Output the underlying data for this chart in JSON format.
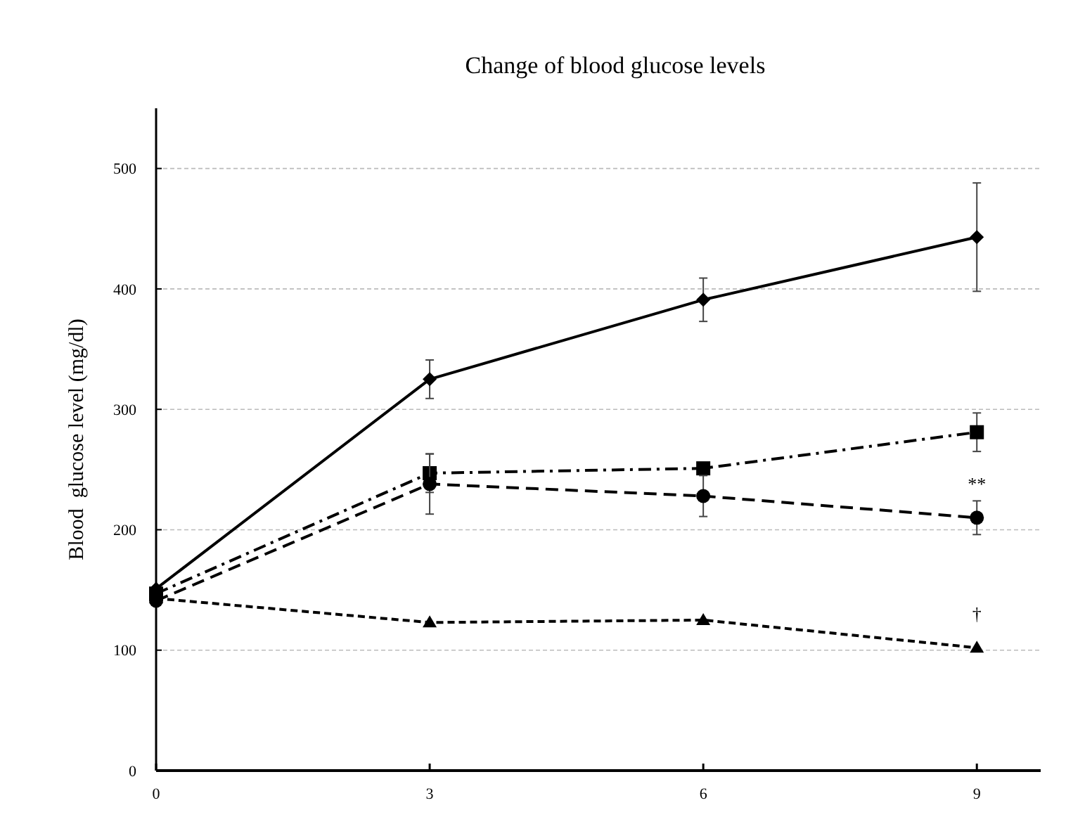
{
  "chart_data": {
    "type": "line",
    "title": "Change of blood glucose levels",
    "ylabel": "Blood  glucose level (mg/dl)",
    "x": [
      0,
      3,
      6,
      9
    ],
    "xlim": [
      0,
      9.7
    ],
    "xticks": [
      0,
      3,
      6,
      9
    ],
    "ylim": [
      0,
      550
    ],
    "yticks": [
      0,
      100,
      200,
      300,
      400,
      500
    ],
    "grid": "y",
    "series": [
      {
        "color": "#000000",
        "values": [
          151,
          325,
          391,
          443
        ],
        "errors": [
          null,
          16,
          18,
          45
        ],
        "marker": "diamond",
        "line_style": "solid"
      },
      {
        "color": "#000000",
        "values": [
          147,
          247,
          251,
          281
        ],
        "errors": [
          null,
          16,
          null,
          16
        ],
        "marker": "square",
        "line_style": "dashdot"
      },
      {
        "color": "#000000",
        "values": [
          141,
          238,
          228,
          210
        ],
        "errors": [
          null,
          25,
          17,
          14
        ],
        "marker": "circle",
        "line_style": "dashed"
      },
      {
        "color": "#000000",
        "values": [
          143,
          123,
          125,
          102
        ],
        "marker": "triangle",
        "line_style": "dotted"
      }
    ],
    "annotations": [
      {
        "text": "**",
        "x": 9,
        "y": 210
      },
      {
        "text": "†",
        "x": 9,
        "y": 102
      }
    ]
  }
}
